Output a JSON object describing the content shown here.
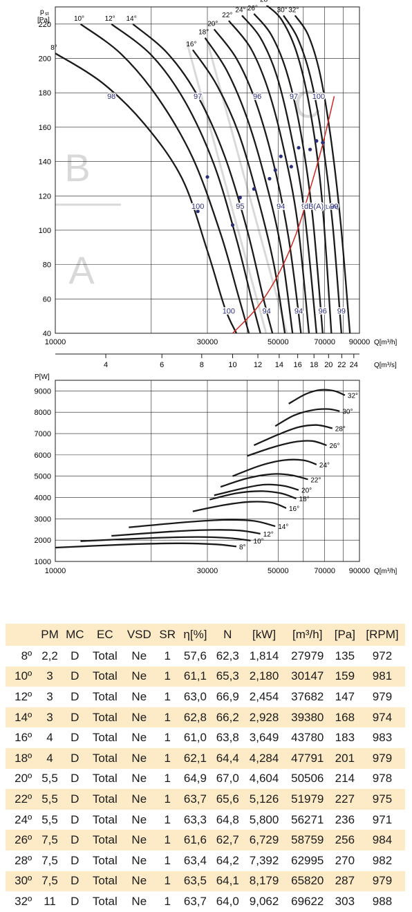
{
  "colors": {
    "curve": "#1a1a1a",
    "system_curve": "#d0261e",
    "label": "#2b2f7a",
    "zone": "#d9d9d9",
    "row_tint": "#fdebc8",
    "grid": "#1a1a1a"
  },
  "chart_data": [
    {
      "type": "line",
      "ylabel_main": "p",
      "ylabel_sub": "st",
      "ylabel_unit": "[Pa]",
      "xlabel": "Q[m³/h]",
      "x2label": "Q[m³/s]",
      "xlim": [
        10000,
        90000
      ],
      "ylim": [
        40,
        230
      ],
      "x_ticks": [
        10000,
        30000,
        50000,
        70000,
        90000
      ],
      "y_ticks": [
        40,
        60,
        80,
        100,
        120,
        140,
        160,
        180,
        200,
        220
      ],
      "x2_ticks": [
        4,
        6,
        8,
        10,
        12,
        14,
        16,
        18,
        20,
        22,
        24
      ],
      "zones": [
        "A",
        "B",
        "C"
      ],
      "sound_unit": "dB(A)",
      "sound_unit_sub": "[LwA]",
      "series": [
        {
          "name": "8°",
          "points": [
            [
              10000,
              203
            ],
            [
              14000,
              186
            ],
            [
              19000,
              162
            ],
            [
              25000,
              130
            ],
            [
              30000,
              88
            ],
            [
              34000,
              55
            ],
            [
              37000,
              40
            ]
          ]
        },
        {
          "name": "10°",
          "points": [
            [
              12000,
              220
            ],
            [
              16000,
              203
            ],
            [
              21000,
              177
            ],
            [
              27000,
              142
            ],
            [
              33000,
              98
            ],
            [
              37500,
              62
            ],
            [
              40500,
              40
            ]
          ]
        },
        {
          "name": "12°",
          "points": [
            [
              15000,
              220
            ],
            [
              20000,
              202
            ],
            [
              25500,
              175
            ],
            [
              31500,
              138
            ],
            [
              37000,
              95
            ],
            [
              41500,
              58
            ],
            [
              44000,
              40
            ]
          ]
        },
        {
          "name": "14°",
          "points": [
            [
              17500,
              220
            ],
            [
              22500,
              203
            ],
            [
              28000,
              178
            ],
            [
              34000,
              143
            ],
            [
              40000,
              100
            ],
            [
              45000,
              60
            ],
            [
              48000,
              40
            ]
          ]
        },
        {
          "name": "16°",
          "points": [
            [
              27000,
              205
            ],
            [
              32000,
              185
            ],
            [
              37500,
              157
            ],
            [
              43000,
              120
            ],
            [
              48500,
              80
            ],
            [
              52500,
              40
            ]
          ]
        },
        {
          "name": "18°",
          "points": [
            [
              29500,
              212
            ],
            [
              34500,
              193
            ],
            [
              40000,
              165
            ],
            [
              45500,
              130
            ],
            [
              51000,
              90
            ],
            [
              55500,
              40
            ]
          ]
        },
        {
          "name": "20°",
          "points": [
            [
              31500,
              217
            ],
            [
              37000,
              200
            ],
            [
              42500,
              175
            ],
            [
              48500,
              138
            ],
            [
              54000,
              95
            ],
            [
              59000,
              40
            ]
          ]
        },
        {
          "name": "22°",
          "points": [
            [
              35000,
              222
            ],
            [
              41000,
              206
            ],
            [
              46500,
              182
            ],
            [
              52000,
              148
            ],
            [
              57500,
              105
            ],
            [
              62500,
              40
            ]
          ]
        },
        {
          "name": "24°",
          "points": [
            [
              38500,
              225
            ],
            [
              44000,
              212
            ],
            [
              49500,
              190
            ],
            [
              55000,
              155
            ],
            [
              60500,
              110
            ],
            [
              66000,
              40
            ]
          ]
        },
        {
          "name": "26°",
          "points": [
            [
              42000,
              226
            ],
            [
              47500,
              214
            ],
            [
              53000,
              193
            ],
            [
              58500,
              160
            ],
            [
              64000,
              110
            ],
            [
              69000,
              40
            ]
          ]
        },
        {
          "name": "28°",
          "points": [
            [
              46000,
              231
            ],
            [
              51500,
              222
            ],
            [
              57500,
              202
            ],
            [
              63000,
              170
            ],
            [
              68500,
              120
            ],
            [
              73500,
              40
            ]
          ]
        },
        {
          "name": "30°",
          "points": [
            [
              52000,
              225
            ],
            [
              57500,
              212
            ],
            [
              63000,
              190
            ],
            [
              68500,
              155
            ],
            [
              74000,
              105
            ],
            [
              79000,
              40
            ]
          ]
        },
        {
          "name": "32°",
          "points": [
            [
              56500,
              225
            ],
            [
              62000,
              214
            ],
            [
              67500,
              192
            ],
            [
              73000,
              155
            ],
            [
              78500,
              105
            ],
            [
              84000,
              40
            ]
          ]
        }
      ],
      "operating_points": [
        {
          "x": 28000,
          "y": 111
        },
        {
          "x": 30000,
          "y": 131
        },
        {
          "x": 36000,
          "y": 103
        },
        {
          "x": 38000,
          "y": 119
        },
        {
          "x": 42000,
          "y": 124
        },
        {
          "x": 47000,
          "y": 130
        },
        {
          "x": 49000,
          "y": 135
        },
        {
          "x": 51000,
          "y": 143
        },
        {
          "x": 55000,
          "y": 137
        },
        {
          "x": 58000,
          "y": 148
        },
        {
          "x": 63000,
          "y": 147
        },
        {
          "x": 66000,
          "y": 152
        },
        {
          "x": 69000,
          "y": 151
        }
      ],
      "system_curve": [
        [
          36000,
          40
        ],
        [
          43000,
          55
        ],
        [
          50000,
          74
        ],
        [
          57000,
          98
        ],
        [
          63000,
          124
        ],
        [
          69000,
          150
        ],
        [
          75000,
          178
        ]
      ],
      "sound_labels": [
        {
          "text": "98",
          "x": 15000,
          "y": 178
        },
        {
          "text": "97",
          "x": 28000,
          "y": 178
        },
        {
          "text": "96",
          "x": 43000,
          "y": 178
        },
        {
          "text": "97",
          "x": 56000,
          "y": 178
        },
        {
          "text": "100",
          "x": 67000,
          "y": 178
        },
        {
          "text": "100",
          "x": 28000,
          "y": 114
        },
        {
          "text": "95",
          "x": 38000,
          "y": 114
        },
        {
          "text": "94",
          "x": 51000,
          "y": 114
        },
        {
          "text": "96",
          "x": 61000,
          "y": 114
        },
        {
          "text": "99",
          "x": 75000,
          "y": 114
        },
        {
          "text": "100",
          "x": 35000,
          "y": 53
        },
        {
          "text": "94",
          "x": 46000,
          "y": 53
        },
        {
          "text": "94",
          "x": 58000,
          "y": 53
        },
        {
          "text": "96",
          "x": 69000,
          "y": 53
        },
        {
          "text": "99",
          "x": 79000,
          "y": 53
        }
      ]
    },
    {
      "type": "line",
      "ylabel": "P[W]",
      "xlabel": "Q[m³/h]",
      "xlim": [
        10000,
        90000
      ],
      "ylim": [
        1000,
        9500
      ],
      "x_ticks": [
        10000,
        30000,
        50000,
        70000,
        90000
      ],
      "y_ticks": [
        1000,
        2000,
        3000,
        4000,
        5000,
        6000,
        7000,
        8000,
        9000
      ],
      "series": [
        {
          "name": "8°",
          "points": [
            [
              10000,
              1650
            ],
            [
              17000,
              1800
            ],
            [
              25000,
              1850
            ],
            [
              32000,
              1800
            ],
            [
              37000,
              1700
            ]
          ]
        },
        {
          "name": "10°",
          "points": [
            [
              12000,
              1950
            ],
            [
              20000,
              2100
            ],
            [
              28000,
              2150
            ],
            [
              35000,
              2100
            ],
            [
              41000,
              1980
            ]
          ]
        },
        {
          "name": "12°",
          "points": [
            [
              15000,
              2200
            ],
            [
              23000,
              2400
            ],
            [
              31000,
              2480
            ],
            [
              38000,
              2450
            ],
            [
              44000,
              2300
            ]
          ]
        },
        {
          "name": "14°",
          "points": [
            [
              17000,
              2600
            ],
            [
              26000,
              2850
            ],
            [
              34000,
              2950
            ],
            [
              42000,
              2900
            ],
            [
              49000,
              2650
            ]
          ]
        },
        {
          "name": "16°",
          "points": [
            [
              27000,
              3350
            ],
            [
              34000,
              3650
            ],
            [
              41000,
              3800
            ],
            [
              48000,
              3750
            ],
            [
              53000,
              3500
            ]
          ]
        },
        {
          "name": "18°",
          "points": [
            [
              30500,
              3900
            ],
            [
              37000,
              4200
            ],
            [
              44000,
              4300
            ],
            [
              51000,
              4200
            ],
            [
              57000,
              3950
            ]
          ]
        },
        {
          "name": "20°",
          "points": [
            [
              31500,
              4100
            ],
            [
              38000,
              4400
            ],
            [
              45000,
              4600
            ],
            [
              52000,
              4550
            ],
            [
              58000,
              4350
            ]
          ]
        },
        {
          "name": "22°",
          "points": [
            [
              33000,
              4500
            ],
            [
              40000,
              4900
            ],
            [
              48000,
              5100
            ],
            [
              55000,
              5050
            ],
            [
              62000,
              4850
            ]
          ]
        },
        {
          "name": "24°",
          "points": [
            [
              36000,
              5000
            ],
            [
              44000,
              5500
            ],
            [
              52000,
              5750
            ],
            [
              60000,
              5750
            ],
            [
              66000,
              5550
            ]
          ]
        },
        {
          "name": "26°",
          "points": [
            [
              40000,
              5950
            ],
            [
              48000,
              6350
            ],
            [
              56000,
              6600
            ],
            [
              64000,
              6650
            ],
            [
              71000,
              6450
            ]
          ]
        },
        {
          "name": "28°",
          "points": [
            [
              42000,
              6450
            ],
            [
              50000,
              6950
            ],
            [
              58000,
              7300
            ],
            [
              66000,
              7400
            ],
            [
              74000,
              7250
            ]
          ]
        },
        {
          "name": "30°",
          "points": [
            [
              49000,
              7350
            ],
            [
              56000,
              7850
            ],
            [
              64000,
              8100
            ],
            [
              72000,
              8150
            ],
            [
              78000,
              8050
            ]
          ]
        },
        {
          "name": "32°",
          "points": [
            [
              54000,
              8400
            ],
            [
              61000,
              8850
            ],
            [
              68000,
              9050
            ],
            [
              75000,
              9000
            ],
            [
              81000,
              8800
            ]
          ]
        }
      ]
    }
  ],
  "table": {
    "headers": [
      "",
      "PM",
      "MC",
      "EC",
      "VSD",
      "SR",
      "η[%]",
      "N",
      "[kW]",
      "[m³/h]",
      "[Pa]",
      "[RPM]"
    ],
    "rows": [
      [
        "8º",
        "2,2",
        "D",
        "Total",
        "Ne",
        "1",
        "57,6",
        "62,3",
        "1,814",
        "27979",
        "135",
        "972"
      ],
      [
        "10º",
        "3",
        "D",
        "Total",
        "Ne",
        "1",
        "61,1",
        "65,3",
        "2,180",
        "30147",
        "159",
        "981"
      ],
      [
        "12º",
        "3",
        "D",
        "Total",
        "Ne",
        "1",
        "63,0",
        "66,9",
        "2,454",
        "37682",
        "147",
        "979"
      ],
      [
        "14º",
        "3",
        "D",
        "Total",
        "Ne",
        "1",
        "62,8",
        "66,2",
        "2,928",
        "39380",
        "168",
        "974"
      ],
      [
        "16º",
        "4",
        "D",
        "Total",
        "Ne",
        "1",
        "61,0",
        "63,8",
        "3,649",
        "43780",
        "183",
        "983"
      ],
      [
        "18º",
        "4",
        "D",
        "Total",
        "Ne",
        "1",
        "62,1",
        "64,4",
        "4,284",
        "47791",
        "201",
        "979"
      ],
      [
        "20º",
        "5,5",
        "D",
        "Total",
        "Ne",
        "1",
        "64,9",
        "67,0",
        "4,604",
        "50506",
        "214",
        "978"
      ],
      [
        "22º",
        "5,5",
        "D",
        "Total",
        "Ne",
        "1",
        "63,7",
        "65,6",
        "5,126",
        "51979",
        "227",
        "975"
      ],
      [
        "24º",
        "5,5",
        "D",
        "Total",
        "Ne",
        "1",
        "63,3",
        "64,8",
        "5,800",
        "56271",
        "236",
        "971"
      ],
      [
        "26º",
        "7,5",
        "D",
        "Total",
        "Ne",
        "1",
        "61,6",
        "62,7",
        "6,729",
        "58759",
        "256",
        "984"
      ],
      [
        "28º",
        "7,5",
        "D",
        "Total",
        "Ne",
        "1",
        "63,4",
        "64,2",
        "7,392",
        "62995",
        "270",
        "982"
      ],
      [
        "30º",
        "7,5",
        "D",
        "Total",
        "Ne",
        "1",
        "63,5",
        "64,1",
        "8,179",
        "65820",
        "287",
        "979"
      ],
      [
        "32º",
        "11",
        "D",
        "Total",
        "Ne",
        "1",
        "63,7",
        "64,0",
        "9,062",
        "69622",
        "303",
        "988"
      ]
    ]
  }
}
